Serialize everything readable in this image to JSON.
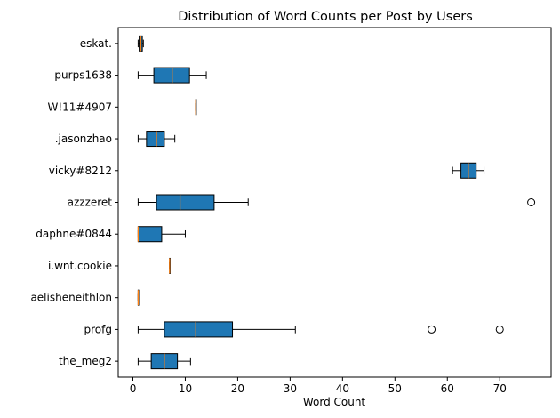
{
  "chart_data": {
    "type": "boxplot",
    "orientation": "horizontal",
    "title": "Distribution of Word Counts per Post by Users",
    "xlabel": "Word Count",
    "ylabel": "",
    "xlim": [
      -2.8,
      79.8
    ],
    "xticks": [
      0,
      10,
      20,
      30,
      40,
      50,
      60,
      70
    ],
    "grid": false,
    "box_color": "#1f77b4",
    "median_color": "#ff7f0e",
    "categories": [
      "eskat.",
      "purps1638",
      "W!11#4907",
      ".jasonzhao",
      "vicky#8212",
      "azzzeret",
      "daphne#0844",
      "i.wnt.cookie",
      "aelisheneithlon",
      "profg",
      "the_meg2"
    ],
    "series": [
      {
        "category": "eskat.",
        "whislo": 1,
        "q1": 1.2,
        "med": 1.5,
        "q3": 1.8,
        "whishi": 2,
        "fliers": []
      },
      {
        "category": "purps1638",
        "whislo": 1,
        "q1": 4,
        "med": 7.5,
        "q3": 10.8,
        "whishi": 14,
        "fliers": []
      },
      {
        "category": "W!11#4907",
        "whislo": 12,
        "q1": 12,
        "med": 12,
        "q3": 12,
        "whishi": 12,
        "fliers": []
      },
      {
        "category": ".jasonzhao",
        "whislo": 1,
        "q1": 2.6,
        "med": 4.5,
        "q3": 6,
        "whishi": 8,
        "fliers": []
      },
      {
        "category": "vicky#8212",
        "whislo": 61,
        "q1": 62.6,
        "med": 64,
        "q3": 65.5,
        "whishi": 67,
        "fliers": []
      },
      {
        "category": "azzzeret",
        "whislo": 1,
        "q1": 4.5,
        "med": 9,
        "q3": 15.5,
        "whishi": 22,
        "fliers": [
          76
        ]
      },
      {
        "category": "daphne#0844",
        "whislo": 1,
        "q1": 1,
        "med": 1,
        "q3": 5.5,
        "whishi": 10,
        "fliers": []
      },
      {
        "category": "i.wnt.cookie",
        "whislo": 7,
        "q1": 7,
        "med": 7,
        "q3": 7,
        "whishi": 7,
        "fliers": []
      },
      {
        "category": "aelisheneithlon",
        "whislo": 1,
        "q1": 1,
        "med": 1,
        "q3": 1,
        "whishi": 1,
        "fliers": []
      },
      {
        "category": "profg",
        "whislo": 1,
        "q1": 6,
        "med": 12,
        "q3": 19,
        "whishi": 31,
        "fliers": [
          57,
          70
        ]
      },
      {
        "category": "the_meg2",
        "whislo": 1,
        "q1": 3.5,
        "med": 6,
        "q3": 8.5,
        "whishi": 11,
        "fliers": []
      }
    ]
  }
}
